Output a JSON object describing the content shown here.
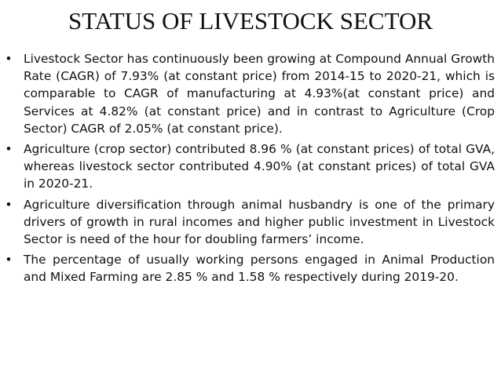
{
  "slide": {
    "title": "STATUS OF LIVESTOCK SECTOR",
    "bullets": [
      {
        "marker": "•",
        "text": "Livestock Sector has continuously been growing at Compound Annual Growth Rate (CAGR) of 7.93% (at constant price) from 2014-15 to 2020-21, which is comparable to CAGR of manufacturing at 4.93%(at constant price) and Services at 4.82% (at constant price) and in contrast to Agriculture (Crop Sector) CAGR of 2.05% (at constant price)."
      },
      {
        "marker": "•",
        "text": "Agriculture (crop sector) contributed 8.96 % (at constant prices) of total GVA, whereas livestock sector contributed 4.90% (at constant prices) of total GVA in 2020-21."
      },
      {
        "marker": "•",
        "text": "Agriculture diversification through animal husbandry is one of the primary drivers of growth in rural incomes and higher public investment in Livestock Sector is need of the hour for doubling farmers’ income."
      },
      {
        "marker": "•",
        "text": "The percentage of usually working persons engaged in Animal Production and Mixed Farming are 2.85 % and 1.58 % respectively during 2019-20."
      }
    ]
  }
}
